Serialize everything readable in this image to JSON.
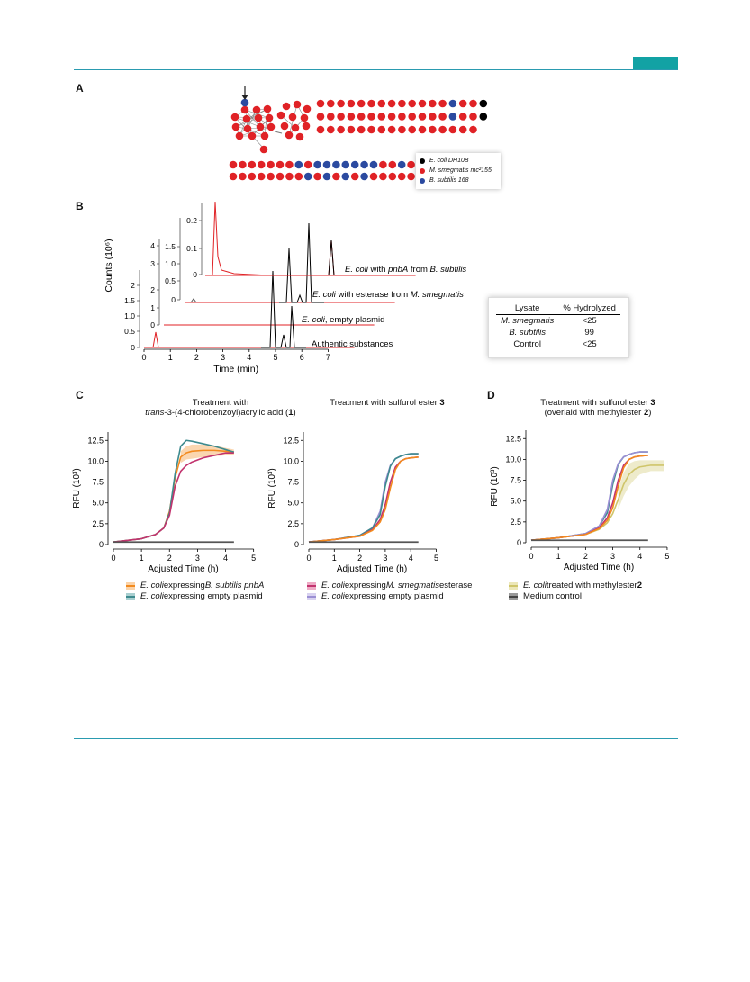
{
  "colors": {
    "accent": "#2a9bb0",
    "red": "#e02226",
    "blue": "#2b4aa0",
    "black": "#000000",
    "orange": "#f28a1e",
    "teal": "#3d8a8e",
    "pink": "#c2336e",
    "lavender": "#9b8fd4",
    "khaki": "#cfc56a",
    "gray": "#555555"
  },
  "panels": {
    "a": "A",
    "b": "B",
    "c": "C",
    "d": "D"
  },
  "network_legend": {
    "items": [
      {
        "label": "E. coli DH10B",
        "color": "#000000"
      },
      {
        "label": "M. smegmatis mc²155",
        "color": "#e02226"
      },
      {
        "label": "B. subtilis 168",
        "color": "#2b4aa0"
      }
    ]
  },
  "chromatogram": {
    "xlabel": "Time (min)",
    "ylabel": "Counts (10⁶)",
    "x_ticks": [
      "0",
      "1",
      "2",
      "3",
      "4",
      "5",
      "6",
      "7"
    ],
    "traces": [
      {
        "label": "Authentic substances",
        "y_ticks": [
          "0",
          "0.5",
          "1.0",
          "1.5",
          "2"
        ]
      },
      {
        "label": "E. coli, empty plasmid",
        "y_ticks": [
          "0",
          "1",
          "2",
          "3",
          "4"
        ]
      },
      {
        "label": "E. coli with esterase from M. smegmatis",
        "y_ticks": [
          "0",
          "0.5",
          "1.0",
          "1.5"
        ]
      },
      {
        "label": "E. coli with pnbA from B. subtilis",
        "y_ticks": [
          "0",
          "0.1",
          "0.2"
        ]
      }
    ],
    "trace_labels": {
      "t1": "Authentic substances",
      "t2_italic": "E. coli",
      "t2_rest": ", empty plasmid",
      "t3_italic": "E. coli",
      "t3_mid": " with esterase from ",
      "t3_italic2": "M. smegmatis",
      "t4_italic": "E. coli",
      "t4_mid": " with ",
      "t4_italic2": "pnbA",
      "t4_mid2": " from ",
      "t4_italic3": "B. subtilis"
    }
  },
  "hydrolysis_table": {
    "headers": [
      "Lysate",
      "% Hydrolyzed"
    ],
    "rows": [
      [
        "M. smegmatis",
        "<25"
      ],
      [
        "B. subtilis",
        "99"
      ],
      [
        "Control",
        "<25"
      ]
    ]
  },
  "chart_data": [
    {
      "type": "line",
      "panel": "C-left",
      "title_line1": "Treatment with",
      "title_line2_italic": "trans",
      "title_line2_rest": "-3-(4-chlorobenzoyl)acrylic acid (",
      "title_line2_bold": "1",
      "title_line2_end": ")",
      "xlabel": "Adjusted Time (h)",
      "ylabel": "RFU (10³)",
      "x_ticks": [
        "0",
        "1",
        "2",
        "3",
        "4",
        "5"
      ],
      "y_ticks": [
        "0",
        "2.5",
        "5.0",
        "7.5",
        "10.0",
        "12.5"
      ],
      "xlim": [
        0,
        5.3
      ],
      "ylim": [
        0,
        13.5
      ],
      "series": [
        {
          "key": "orange",
          "x": [
            0,
            1,
            1.5,
            1.8,
            2.0,
            2.2,
            2.4,
            2.6,
            2.8,
            3.2,
            3.6,
            4.0,
            4.3
          ],
          "y": [
            0.3,
            0.7,
            1.2,
            2.0,
            4.0,
            8.0,
            10.5,
            11.0,
            11.2,
            11.3,
            11.3,
            11.2,
            11.1
          ]
        },
        {
          "key": "teal",
          "x": [
            0,
            1,
            1.5,
            1.8,
            2.0,
            2.2,
            2.4,
            2.6,
            2.8,
            3.2,
            3.6,
            4.0,
            4.3
          ],
          "y": [
            0.3,
            0.7,
            1.2,
            2.0,
            3.8,
            8.5,
            11.8,
            12.5,
            12.4,
            12.1,
            11.8,
            11.4,
            11.1
          ]
        },
        {
          "key": "pink",
          "x": [
            0,
            1,
            1.5,
            1.8,
            2.0,
            2.2,
            2.4,
            2.6,
            2.8,
            3.2,
            3.6,
            4.0,
            4.3
          ],
          "y": [
            0.3,
            0.7,
            1.2,
            2.0,
            3.5,
            7.0,
            8.8,
            9.5,
            9.9,
            10.4,
            10.7,
            11.0,
            11.0
          ]
        },
        {
          "key": "gray",
          "x": [
            0,
            4.3
          ],
          "y": [
            0.3,
            0.3
          ]
        }
      ],
      "bands": [
        {
          "key": "orange",
          "x": [
            2.4,
            2.6,
            2.8,
            3.2,
            3.6,
            4.0,
            4.3
          ],
          "lo": [
            9.8,
            10.2,
            10.3,
            10.5,
            10.6,
            10.7,
            10.7
          ],
          "hi": [
            11.2,
            11.8,
            12.0,
            12.0,
            11.9,
            11.6,
            11.4
          ]
        }
      ]
    },
    {
      "type": "line",
      "panel": "C-right",
      "title_line1_rest": "Treatment with sulfurol ester ",
      "title_line1_bold": "3",
      "xlabel": "Adjusted Time (h)",
      "ylabel": "RFU (10³)",
      "x_ticks": [
        "0",
        "1",
        "2",
        "3",
        "4",
        "5"
      ],
      "y_ticks": [
        "0",
        "2.5",
        "5.0",
        "7.5",
        "10.0",
        "12.5"
      ],
      "xlim": [
        0,
        5.3
      ],
      "ylim": [
        0,
        13.5
      ],
      "series": [
        {
          "key": "lavender",
          "x": [
            0,
            1,
            2,
            2.5,
            2.8,
            3.0,
            3.2,
            3.4,
            3.6,
            3.8,
            4.0,
            4.3
          ],
          "y": [
            0.3,
            0.6,
            1.1,
            2.0,
            4.0,
            7.5,
            9.5,
            10.3,
            10.6,
            10.8,
            10.9,
            10.9
          ]
        },
        {
          "key": "teal",
          "x": [
            0,
            1,
            2,
            2.5,
            2.8,
            3.0,
            3.2,
            3.4,
            3.6,
            3.8,
            4.0,
            4.3
          ],
          "y": [
            0.3,
            0.6,
            1.1,
            2.0,
            3.6,
            7.0,
            9.4,
            10.3,
            10.6,
            10.8,
            10.9,
            10.9
          ]
        },
        {
          "key": "pink",
          "x": [
            0,
            1,
            2,
            2.5,
            2.8,
            3.0,
            3.2,
            3.4,
            3.6,
            3.8,
            4.0,
            4.3
          ],
          "y": [
            0.3,
            0.6,
            1.0,
            1.8,
            3.0,
            4.8,
            7.5,
            9.3,
            10.0,
            10.3,
            10.4,
            10.5
          ]
        },
        {
          "key": "orange",
          "x": [
            0,
            1,
            2,
            2.5,
            2.8,
            3.0,
            3.2,
            3.4,
            3.6,
            3.8,
            4.0,
            4.3
          ],
          "y": [
            0.3,
            0.6,
            1.0,
            1.7,
            2.7,
            4.2,
            6.8,
            9.0,
            10.0,
            10.3,
            10.4,
            10.5
          ]
        },
        {
          "key": "gray",
          "x": [
            0,
            4.3
          ],
          "y": [
            0.3,
            0.3
          ]
        }
      ],
      "bands": []
    },
    {
      "type": "line",
      "panel": "D",
      "title_line1_rest": "Treatment with sulfurol ester ",
      "title_line1_bold": "3",
      "title_line2_rest": "(overlaid with methylester ",
      "title_line2_bold": "2",
      "title_line2_end": ")",
      "xlabel": "Adjusted Time (h)",
      "ylabel": "RFU (10³)",
      "x_ticks": [
        "0",
        "1",
        "2",
        "3",
        "4",
        "5"
      ],
      "y_ticks": [
        "0",
        "2.5",
        "5.0",
        "7.5",
        "10.0",
        "12.5"
      ],
      "xlim": [
        0,
        5.3
      ],
      "ylim": [
        0,
        13.5
      ],
      "series": [
        {
          "key": "khaki",
          "x": [
            0,
            1,
            2,
            2.5,
            2.8,
            3.0,
            3.2,
            3.4,
            3.6,
            3.8,
            4.0,
            4.4,
            4.9
          ],
          "y": [
            0.3,
            0.6,
            1.0,
            1.6,
            2.4,
            3.5,
            5.2,
            7.0,
            8.2,
            8.8,
            9.1,
            9.3,
            9.3
          ]
        },
        {
          "key": "teal",
          "x": [
            0,
            1,
            2,
            2.5,
            2.8,
            3.0,
            3.2,
            3.4,
            3.6,
            3.8,
            4.0,
            4.3
          ],
          "y": [
            0.3,
            0.6,
            1.1,
            2.0,
            3.6,
            7.0,
            9.4,
            10.3,
            10.6,
            10.8,
            10.9,
            10.9
          ]
        },
        {
          "key": "lavender",
          "x": [
            0,
            1,
            2,
            2.5,
            2.8,
            3.0,
            3.2,
            3.4,
            3.6,
            3.8,
            4.0,
            4.3
          ],
          "y": [
            0.3,
            0.6,
            1.1,
            2.0,
            4.0,
            7.5,
            9.5,
            10.3,
            10.6,
            10.8,
            10.9,
            10.9
          ]
        },
        {
          "key": "pink",
          "x": [
            0,
            1,
            2,
            2.5,
            2.8,
            3.0,
            3.2,
            3.4,
            3.6,
            3.8,
            4.0,
            4.3
          ],
          "y": [
            0.3,
            0.6,
            1.0,
            1.8,
            3.0,
            4.8,
            7.5,
            9.3,
            10.0,
            10.3,
            10.4,
            10.5
          ]
        },
        {
          "key": "orange",
          "x": [
            0,
            1,
            2,
            2.5,
            2.8,
            3.0,
            3.2,
            3.4,
            3.6,
            3.8,
            4.0,
            4.3
          ],
          "y": [
            0.3,
            0.6,
            1.0,
            1.7,
            2.7,
            4.2,
            6.8,
            9.0,
            10.0,
            10.3,
            10.4,
            10.5
          ]
        },
        {
          "key": "gray",
          "x": [
            0,
            4.3
          ],
          "y": [
            0.3,
            0.3
          ]
        }
      ],
      "bands": [
        {
          "key": "khaki",
          "x": [
            3.2,
            3.4,
            3.6,
            3.8,
            4.0,
            4.4,
            4.9
          ],
          "lo": [
            4.0,
            5.6,
            6.8,
            7.6,
            8.2,
            8.6,
            8.6
          ],
          "hi": [
            6.4,
            8.4,
            9.5,
            9.8,
            9.9,
            9.9,
            9.9
          ]
        }
      ]
    }
  ],
  "legend_c": [
    {
      "key": "orange",
      "italic": "E. coli",
      "rest": " expressing ",
      "italic2": "B. subtilis pnbA",
      "end": ""
    },
    {
      "key": "teal",
      "italic": "E. coli",
      "rest": " expressing empty plasmid",
      "italic2": "",
      "end": ""
    },
    {
      "key": "pink",
      "italic": "E. coli",
      "rest": " expressing ",
      "italic2": "M. smegmatis",
      "end": " esterase"
    },
    {
      "key": "lavender",
      "italic": "E. coli",
      "rest": " expressing empty plasmid",
      "italic2": "",
      "end": ""
    }
  ],
  "legend_d": [
    {
      "key": "khaki",
      "italic": "E. coli",
      "rest": " treated with methylester ",
      "bold": "2"
    },
    {
      "key": "gray",
      "italic": "",
      "rest": "Medium control",
      "bold": ""
    }
  ]
}
